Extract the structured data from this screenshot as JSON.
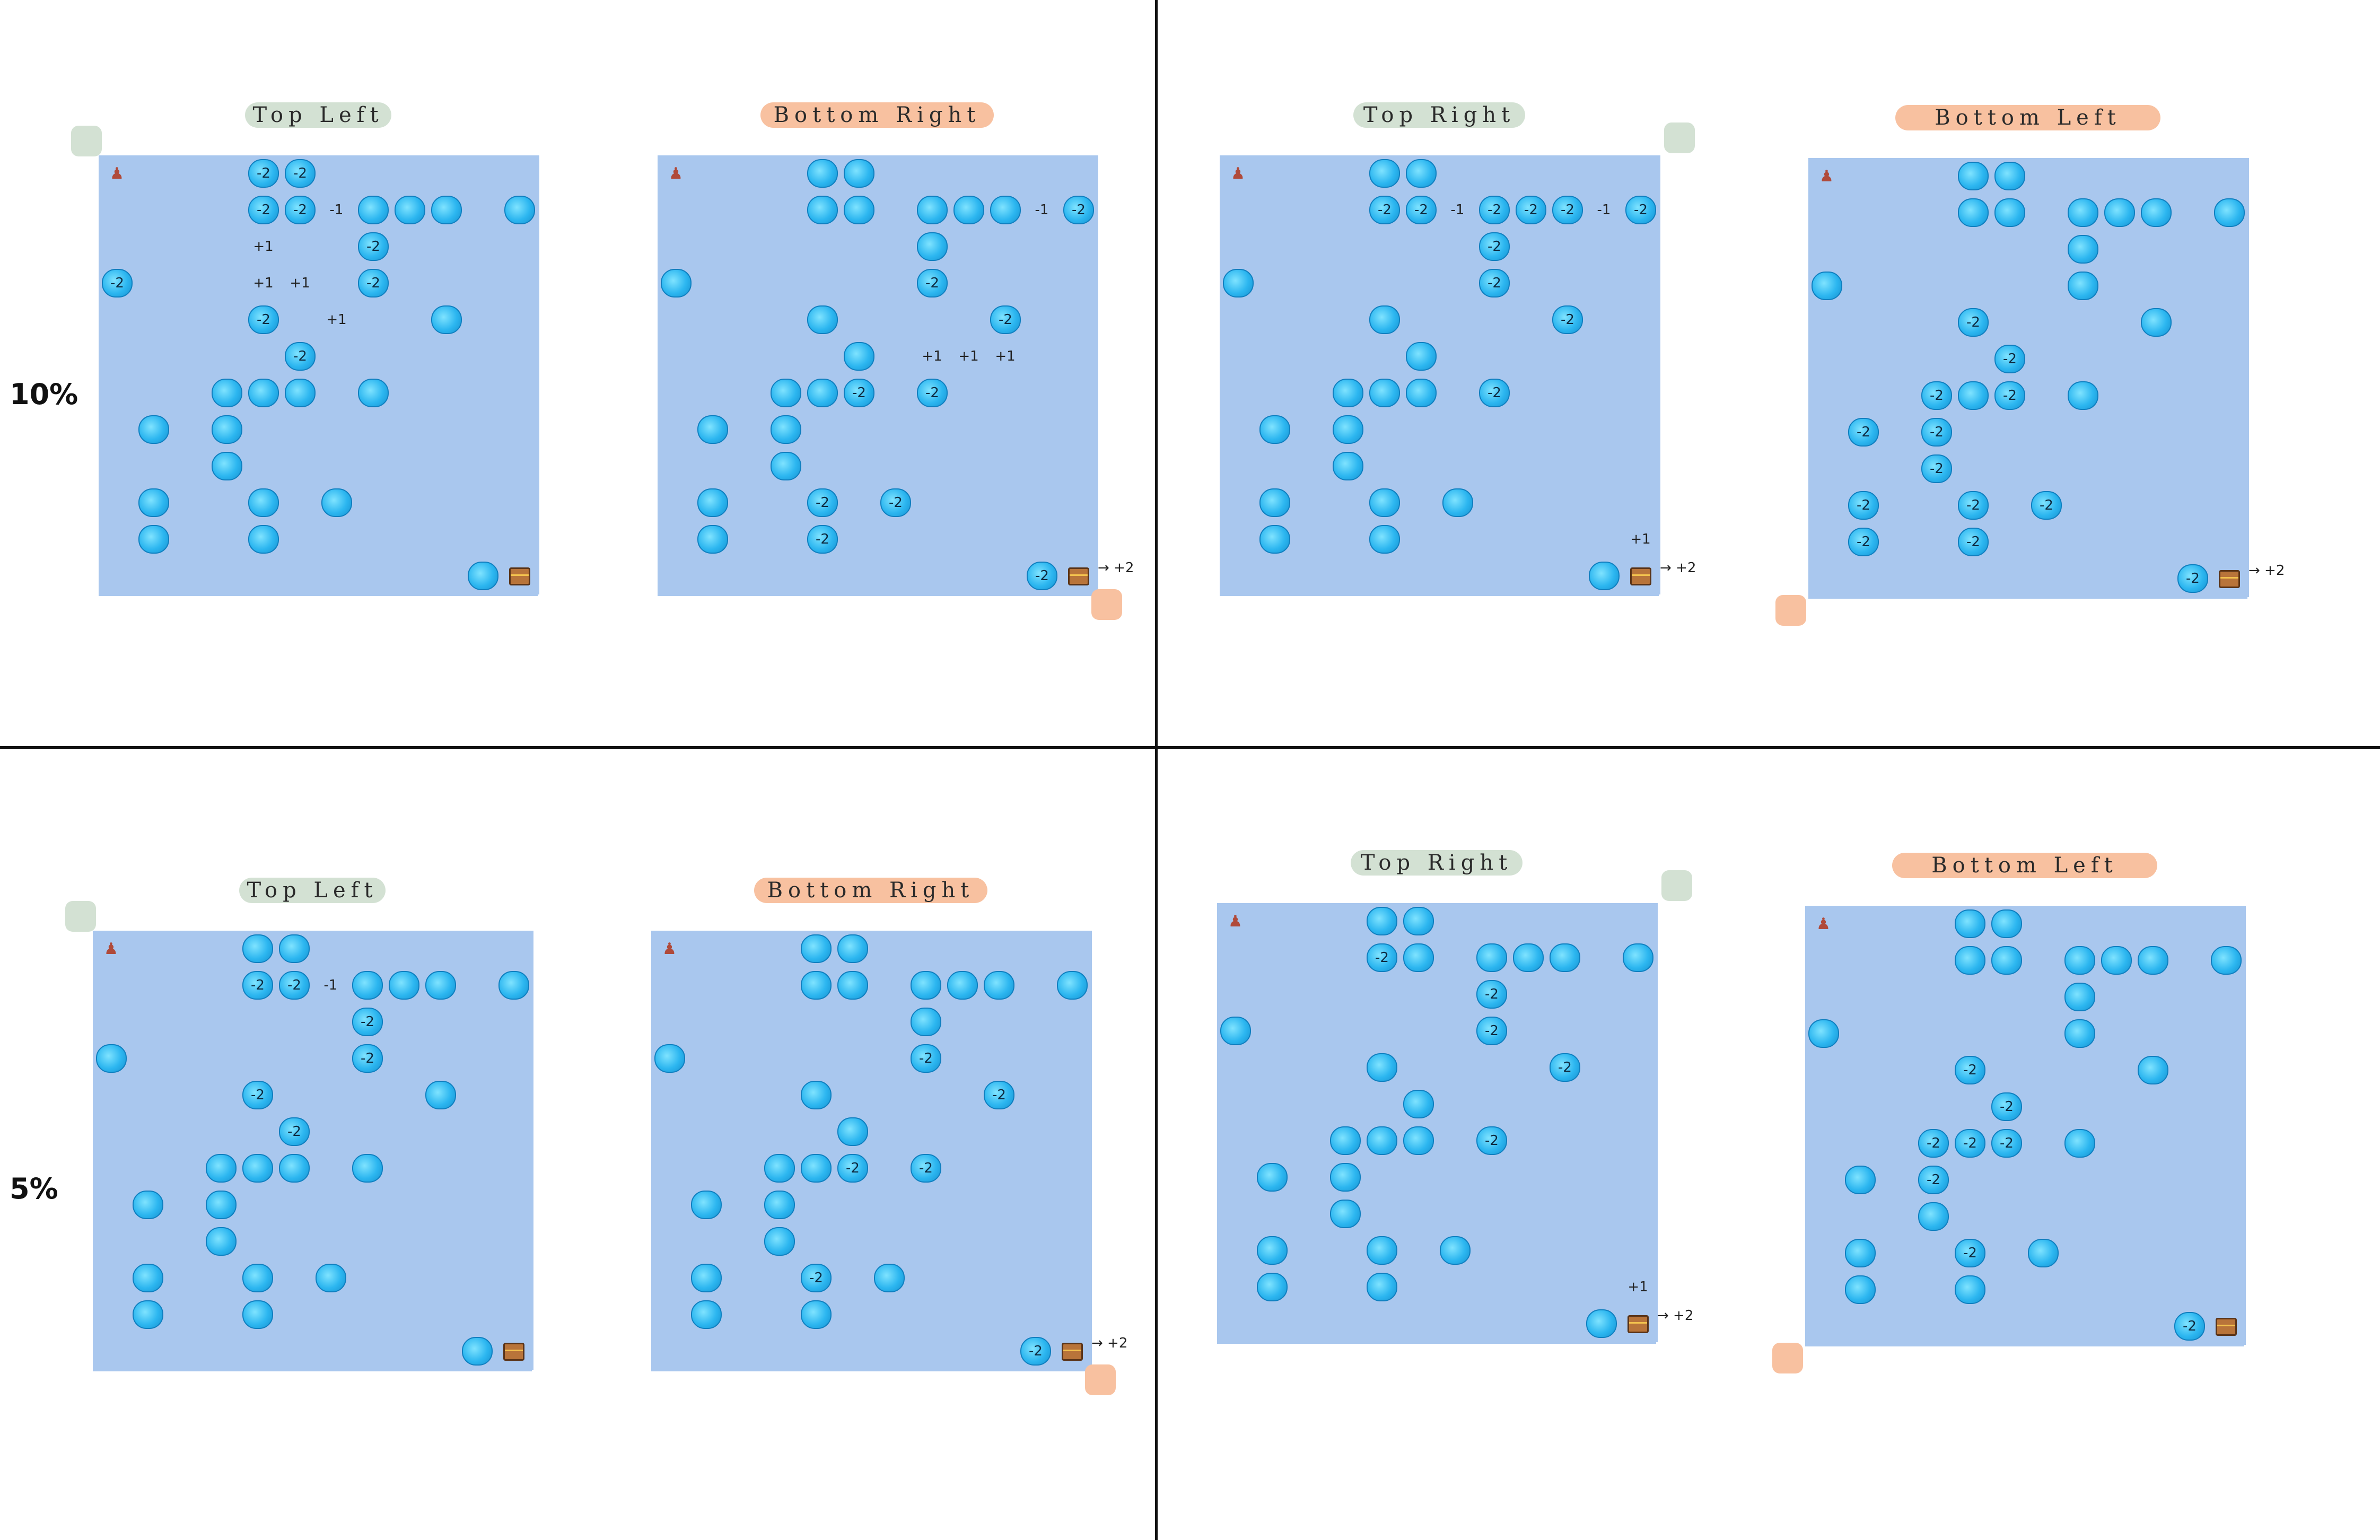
{
  "rows": [
    {
      "label": "10%"
    },
    {
      "label": "5%"
    }
  ],
  "goal_reward": "+2",
  "colors": {
    "ice": "#2cb6f0",
    "green_tag": "#d3e1d3",
    "orange_tag": "#f8c1a0",
    "grid_line": "#a9c7ee"
  },
  "icons": {
    "start": "player-icon",
    "goal": "treasure-chest-icon",
    "hazard": "ice-hole-icon"
  },
  "panels": [
    {
      "title": "Top Left",
      "tag": "green",
      "corner": "top-left",
      "goal_label": "",
      "ice": [
        [
          0,
          4,
          "-2"
        ],
        [
          0,
          5,
          "-2"
        ],
        [
          1,
          4,
          "-2"
        ],
        [
          1,
          5,
          "-2"
        ],
        [
          1,
          7,
          ""
        ],
        [
          1,
          8,
          ""
        ],
        [
          1,
          9,
          ""
        ],
        [
          1,
          11,
          ""
        ],
        [
          2,
          7,
          "-2"
        ],
        [
          3,
          0,
          "-2"
        ],
        [
          3,
          7,
          "-2"
        ],
        [
          4,
          4,
          "-2"
        ],
        [
          4,
          9,
          ""
        ],
        [
          5,
          5,
          "-2"
        ],
        [
          6,
          3,
          ""
        ],
        [
          6,
          4,
          ""
        ],
        [
          6,
          5,
          ""
        ],
        [
          6,
          7,
          ""
        ],
        [
          7,
          1,
          ""
        ],
        [
          7,
          3,
          ""
        ],
        [
          8,
          3,
          ""
        ],
        [
          9,
          1,
          ""
        ],
        [
          9,
          4,
          ""
        ],
        [
          9,
          6,
          ""
        ],
        [
          10,
          1,
          ""
        ],
        [
          10,
          4,
          ""
        ],
        [
          11,
          10,
          ""
        ]
      ],
      "bonus": [
        [
          1,
          6,
          "-1"
        ],
        [
          2,
          4,
          "+1"
        ],
        [
          3,
          4,
          "+1"
        ],
        [
          3,
          5,
          "+1"
        ],
        [
          4,
          6,
          "+1"
        ]
      ]
    },
    {
      "title": "Bottom Right",
      "tag": "orange",
      "corner": "bottom-right",
      "goal_label": "+2",
      "ice": [
        [
          0,
          4,
          ""
        ],
        [
          0,
          5,
          ""
        ],
        [
          1,
          4,
          ""
        ],
        [
          1,
          5,
          ""
        ],
        [
          1,
          7,
          ""
        ],
        [
          1,
          8,
          ""
        ],
        [
          1,
          9,
          ""
        ],
        [
          1,
          11,
          "-2"
        ],
        [
          2,
          7,
          ""
        ],
        [
          3,
          0,
          ""
        ],
        [
          3,
          7,
          "-2"
        ],
        [
          4,
          4,
          ""
        ],
        [
          4,
          9,
          "-2"
        ],
        [
          5,
          5,
          ""
        ],
        [
          6,
          3,
          ""
        ],
        [
          6,
          4,
          ""
        ],
        [
          6,
          5,
          "-2"
        ],
        [
          6,
          7,
          "-2"
        ],
        [
          7,
          1,
          ""
        ],
        [
          7,
          3,
          ""
        ],
        [
          8,
          3,
          ""
        ],
        [
          9,
          1,
          ""
        ],
        [
          9,
          4,
          "-2"
        ],
        [
          9,
          6,
          "-2"
        ],
        [
          10,
          1,
          ""
        ],
        [
          10,
          4,
          "-2"
        ],
        [
          11,
          10,
          "-2"
        ]
      ],
      "bonus": [
        [
          1,
          10,
          "-1"
        ],
        [
          5,
          7,
          "+1"
        ],
        [
          5,
          8,
          "+1"
        ],
        [
          5,
          9,
          "+1"
        ]
      ]
    },
    {
      "title": "Top Right",
      "tag": "green",
      "corner": "top-right",
      "goal_label": "+2",
      "ice": [
        [
          0,
          4,
          ""
        ],
        [
          0,
          5,
          ""
        ],
        [
          1,
          4,
          "-2"
        ],
        [
          1,
          5,
          "-2"
        ],
        [
          1,
          7,
          "-2"
        ],
        [
          1,
          8,
          "-2"
        ],
        [
          1,
          9,
          "-2"
        ],
        [
          1,
          11,
          "-2"
        ],
        [
          2,
          7,
          "-2"
        ],
        [
          3,
          0,
          ""
        ],
        [
          3,
          7,
          "-2"
        ],
        [
          4,
          4,
          ""
        ],
        [
          4,
          9,
          "-2"
        ],
        [
          5,
          5,
          ""
        ],
        [
          6,
          3,
          ""
        ],
        [
          6,
          4,
          ""
        ],
        [
          6,
          5,
          ""
        ],
        [
          6,
          7,
          "-2"
        ],
        [
          7,
          1,
          ""
        ],
        [
          7,
          3,
          ""
        ],
        [
          8,
          3,
          ""
        ],
        [
          9,
          1,
          ""
        ],
        [
          9,
          4,
          ""
        ],
        [
          9,
          6,
          ""
        ],
        [
          10,
          1,
          ""
        ],
        [
          10,
          4,
          ""
        ],
        [
          11,
          10,
          ""
        ]
      ],
      "bonus": [
        [
          1,
          6,
          "-1"
        ],
        [
          1,
          10,
          "-1"
        ],
        [
          10,
          11,
          "+1"
        ]
      ]
    },
    {
      "title": "Bottom Left",
      "tag": "orange",
      "corner": "bottom-left",
      "goal_label": "+2",
      "ice": [
        [
          0,
          4,
          ""
        ],
        [
          0,
          5,
          ""
        ],
        [
          1,
          4,
          ""
        ],
        [
          1,
          5,
          ""
        ],
        [
          1,
          7,
          ""
        ],
        [
          1,
          8,
          ""
        ],
        [
          1,
          9,
          ""
        ],
        [
          1,
          11,
          ""
        ],
        [
          2,
          7,
          ""
        ],
        [
          3,
          0,
          ""
        ],
        [
          3,
          7,
          ""
        ],
        [
          4,
          4,
          "-2"
        ],
        [
          4,
          9,
          ""
        ],
        [
          5,
          5,
          "-2"
        ],
        [
          6,
          3,
          "-2"
        ],
        [
          6,
          4,
          ""
        ],
        [
          6,
          5,
          "-2"
        ],
        [
          6,
          7,
          ""
        ],
        [
          7,
          1,
          "-2"
        ],
        [
          7,
          3,
          "-2"
        ],
        [
          8,
          3,
          "-2"
        ],
        [
          9,
          1,
          "-2"
        ],
        [
          9,
          4,
          "-2"
        ],
        [
          9,
          6,
          "-2"
        ],
        [
          10,
          1,
          "-2"
        ],
        [
          10,
          4,
          "-2"
        ],
        [
          11,
          10,
          "-2"
        ]
      ],
      "bonus": []
    },
    {
      "title": "Top Left",
      "tag": "green",
      "corner": "top-left",
      "goal_label": "",
      "ice": [
        [
          0,
          4,
          ""
        ],
        [
          0,
          5,
          ""
        ],
        [
          1,
          4,
          "-2"
        ],
        [
          1,
          5,
          "-2"
        ],
        [
          1,
          7,
          ""
        ],
        [
          1,
          8,
          ""
        ],
        [
          1,
          9,
          ""
        ],
        [
          1,
          11,
          ""
        ],
        [
          2,
          7,
          "-2"
        ],
        [
          3,
          0,
          ""
        ],
        [
          3,
          7,
          "-2"
        ],
        [
          4,
          4,
          "-2"
        ],
        [
          4,
          9,
          ""
        ],
        [
          5,
          5,
          "-2"
        ],
        [
          6,
          3,
          ""
        ],
        [
          6,
          4,
          ""
        ],
        [
          6,
          5,
          ""
        ],
        [
          6,
          7,
          ""
        ],
        [
          7,
          1,
          ""
        ],
        [
          7,
          3,
          ""
        ],
        [
          8,
          3,
          ""
        ],
        [
          9,
          1,
          ""
        ],
        [
          9,
          4,
          ""
        ],
        [
          9,
          6,
          ""
        ],
        [
          10,
          1,
          ""
        ],
        [
          10,
          4,
          ""
        ],
        [
          11,
          10,
          ""
        ]
      ],
      "bonus": [
        [
          1,
          6,
          "-1"
        ]
      ]
    },
    {
      "title": "Bottom Right",
      "tag": "orange",
      "corner": "bottom-right",
      "goal_label": "+2",
      "ice": [
        [
          0,
          4,
          ""
        ],
        [
          0,
          5,
          ""
        ],
        [
          1,
          4,
          ""
        ],
        [
          1,
          5,
          ""
        ],
        [
          1,
          7,
          ""
        ],
        [
          1,
          8,
          ""
        ],
        [
          1,
          9,
          ""
        ],
        [
          1,
          11,
          ""
        ],
        [
          2,
          7,
          ""
        ],
        [
          3,
          0,
          ""
        ],
        [
          3,
          7,
          "-2"
        ],
        [
          4,
          4,
          ""
        ],
        [
          4,
          9,
          "-2"
        ],
        [
          5,
          5,
          ""
        ],
        [
          6,
          3,
          ""
        ],
        [
          6,
          4,
          ""
        ],
        [
          6,
          5,
          "-2"
        ],
        [
          6,
          7,
          "-2"
        ],
        [
          7,
          1,
          ""
        ],
        [
          7,
          3,
          ""
        ],
        [
          8,
          3,
          ""
        ],
        [
          9,
          1,
          ""
        ],
        [
          9,
          4,
          "-2"
        ],
        [
          9,
          6,
          ""
        ],
        [
          10,
          1,
          ""
        ],
        [
          10,
          4,
          ""
        ],
        [
          11,
          10,
          "-2"
        ]
      ],
      "bonus": []
    },
    {
      "title": "Top Right",
      "tag": "green",
      "corner": "top-right",
      "goal_label": "+2",
      "ice": [
        [
          0,
          4,
          ""
        ],
        [
          0,
          5,
          ""
        ],
        [
          1,
          4,
          "-2"
        ],
        [
          1,
          5,
          ""
        ],
        [
          1,
          7,
          ""
        ],
        [
          1,
          8,
          ""
        ],
        [
          1,
          9,
          ""
        ],
        [
          1,
          11,
          ""
        ],
        [
          2,
          7,
          "-2"
        ],
        [
          3,
          0,
          ""
        ],
        [
          3,
          7,
          "-2"
        ],
        [
          4,
          4,
          ""
        ],
        [
          4,
          9,
          "-2"
        ],
        [
          5,
          5,
          ""
        ],
        [
          6,
          3,
          ""
        ],
        [
          6,
          4,
          ""
        ],
        [
          6,
          5,
          ""
        ],
        [
          6,
          7,
          "-2"
        ],
        [
          7,
          1,
          ""
        ],
        [
          7,
          3,
          ""
        ],
        [
          8,
          3,
          ""
        ],
        [
          9,
          1,
          ""
        ],
        [
          9,
          4,
          ""
        ],
        [
          9,
          6,
          ""
        ],
        [
          10,
          1,
          ""
        ],
        [
          10,
          4,
          ""
        ],
        [
          11,
          10,
          ""
        ]
      ],
      "bonus": [
        [
          10,
          11,
          "+1"
        ]
      ]
    },
    {
      "title": "Bottom Left",
      "tag": "orange",
      "corner": "bottom-left",
      "goal_label": "",
      "ice": [
        [
          0,
          4,
          ""
        ],
        [
          0,
          5,
          ""
        ],
        [
          1,
          4,
          ""
        ],
        [
          1,
          5,
          ""
        ],
        [
          1,
          7,
          ""
        ],
        [
          1,
          8,
          ""
        ],
        [
          1,
          9,
          ""
        ],
        [
          1,
          11,
          ""
        ],
        [
          2,
          7,
          ""
        ],
        [
          3,
          0,
          ""
        ],
        [
          3,
          7,
          ""
        ],
        [
          4,
          4,
          "-2"
        ],
        [
          4,
          9,
          ""
        ],
        [
          5,
          5,
          "-2"
        ],
        [
          6,
          3,
          "-2"
        ],
        [
          6,
          4,
          "-2"
        ],
        [
          6,
          5,
          "-2"
        ],
        [
          6,
          7,
          ""
        ],
        [
          7,
          1,
          ""
        ],
        [
          7,
          3,
          "-2"
        ],
        [
          8,
          3,
          ""
        ],
        [
          9,
          1,
          ""
        ],
        [
          9,
          4,
          "-2"
        ],
        [
          9,
          6,
          ""
        ],
        [
          10,
          1,
          ""
        ],
        [
          10,
          4,
          ""
        ],
        [
          11,
          10,
          "-2"
        ]
      ],
      "bonus": []
    }
  ]
}
